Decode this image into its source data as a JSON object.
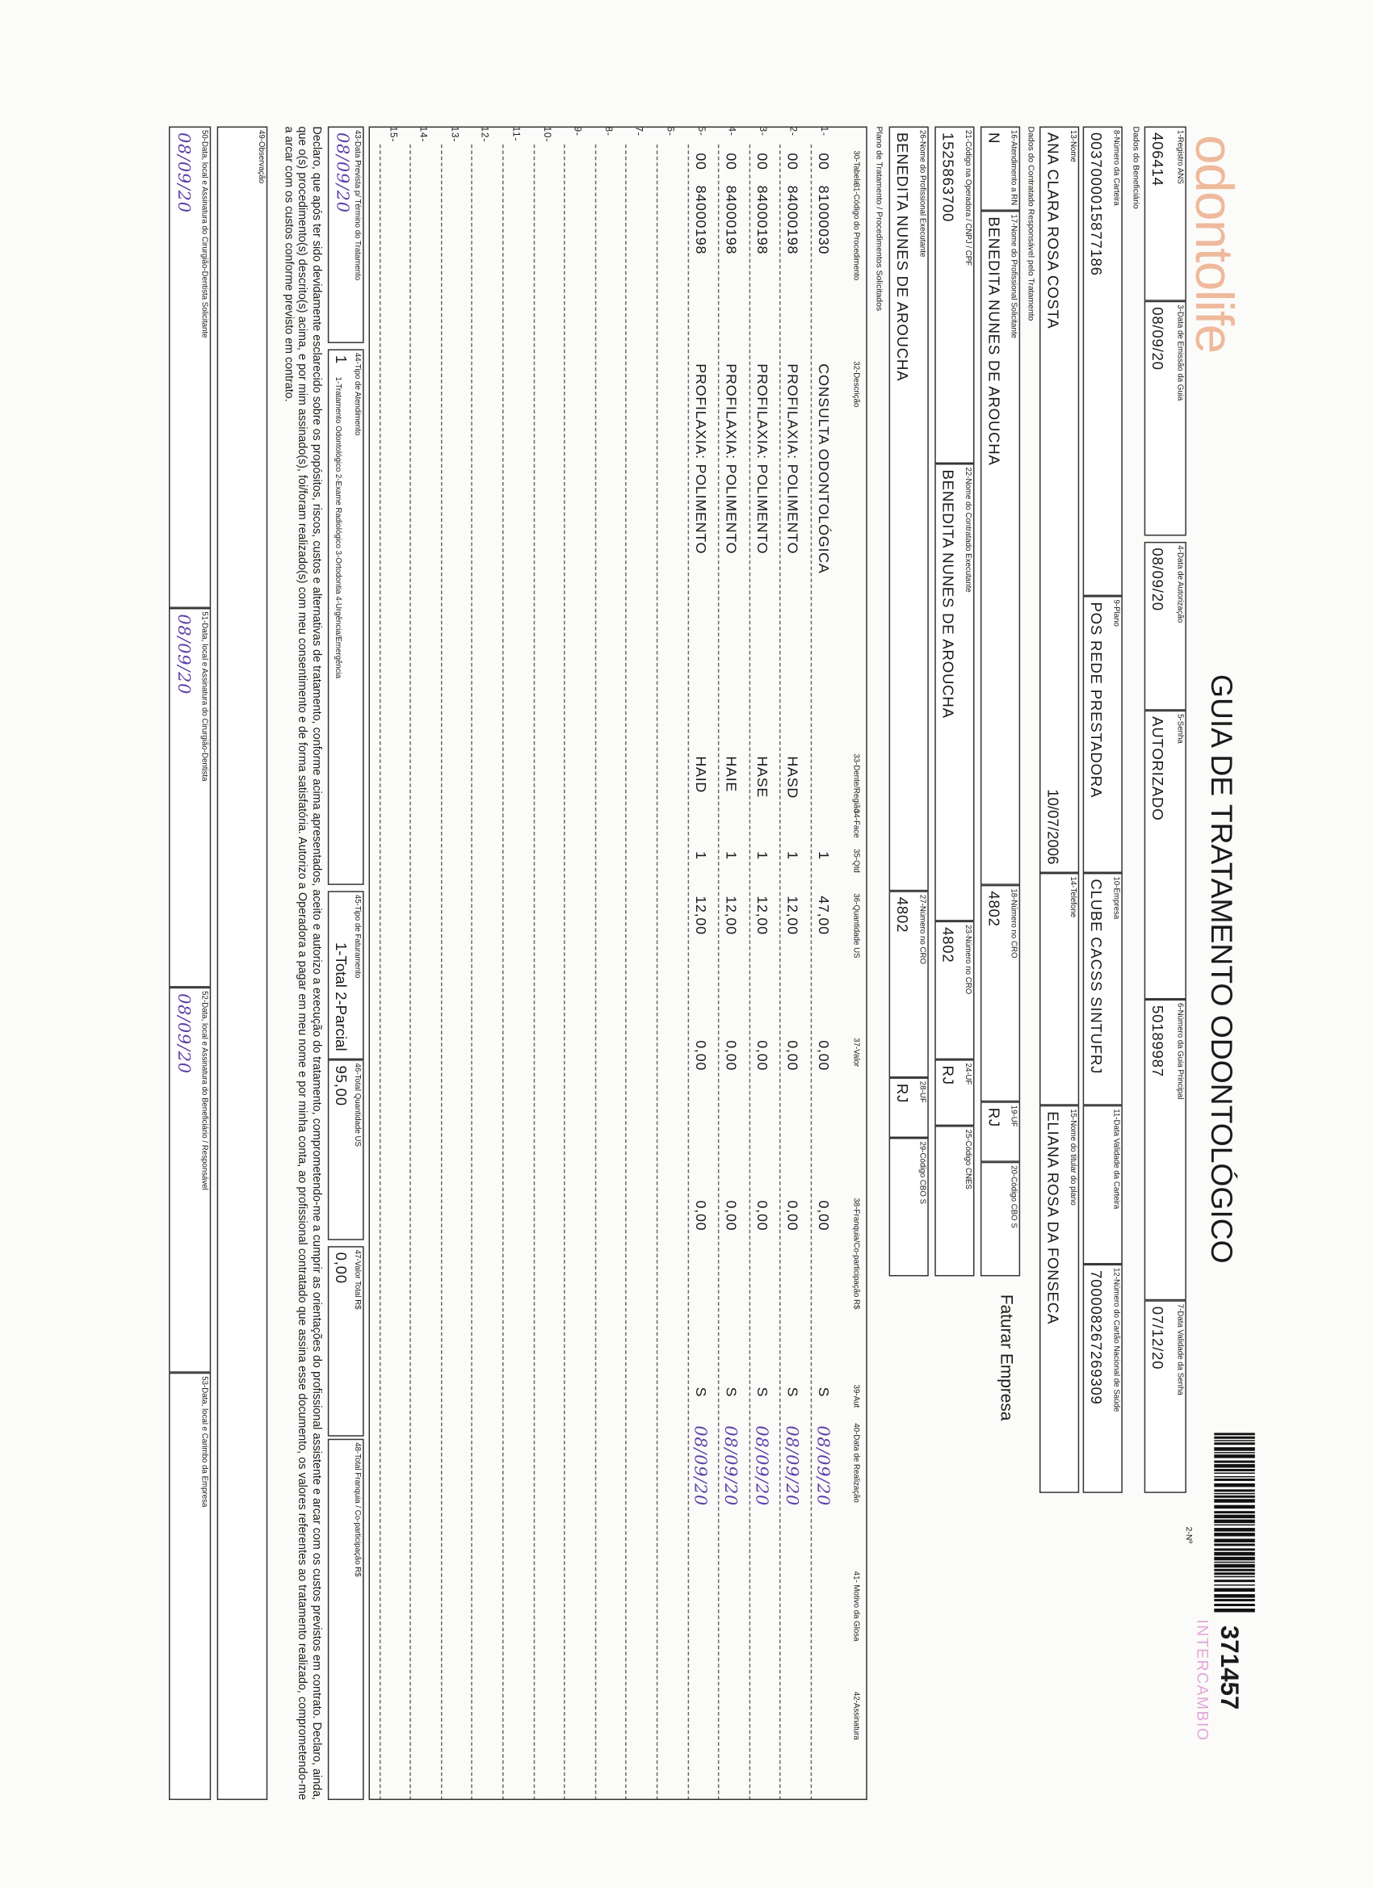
{
  "header": {
    "logo": "odontolife",
    "title": "GUIA DE TRATAMENTO ODONTOLÓGICO",
    "form_no_label": "2-Nº",
    "form_no": "371457",
    "stamp": "INTERCAMBIO"
  },
  "sections": {
    "beneficiary": "Dados do Beneficiário",
    "contractor": "Dados do Contratado Responsável pelo Tratamento",
    "plan": "Plano de Tratamento / Procedimentos Solicitados"
  },
  "fields": [
    {
      "label": "1-Registro ANS",
      "value": "406414"
    },
    {
      "label": "3-Data de Emissão da Guia",
      "value": "08/09/20"
    },
    {
      "label": "4-Data de Autorização",
      "value": "08/09/20"
    },
    {
      "label": "5-Senha",
      "value": "AUTORIZADO"
    },
    {
      "label": "6-Número da Guia Principal",
      "value": "50189987"
    },
    {
      "label": "7-Data Validade da Senha",
      "value": "07/12/20"
    },
    {
      "label": "8-Número da Carteira",
      "value": "0037000015877186"
    },
    {
      "label": "9-Plano",
      "value": "POS REDE PRESTADORA"
    },
    {
      "label": "10-Empresa",
      "value": "CLUBE CACSS SINTUFRJ"
    },
    {
      "label": "11-Data Validade da Carteira"
    },
    {
      "label": "12-Número do Cartão Nacional de Saúde",
      "value": "700008267269309"
    },
    {
      "label": "13-Nome",
      "value": "ANA CLARA ROSA COSTA",
      "extra": "10/07/2006"
    },
    {
      "label": "14-Telefone"
    },
    {
      "label": "15-Nome do titular do plano",
      "value": "ELIANA ROSA DA FONSECA"
    },
    {
      "label": "16-Atendimento a RN",
      "value": "N"
    },
    {
      "label": "17-Nome do Profissional Solicitante",
      "value": "BENEDITA NUNES DE AROUCHA"
    },
    {
      "label": "18-Número no CRO",
      "value": "4802"
    },
    {
      "label": "19-UF",
      "value": "RJ"
    },
    {
      "label": "20-Código CBO S"
    },
    {
      "label": "21-Código na Operadora / CNPJ / CPF",
      "value": "1525863700"
    },
    {
      "label": "22-Nome do Contratado Executante",
      "value": "BENEDITA NUNES DE AROUCHA"
    },
    {
      "label": "23-Número no CRO",
      "value": "4802"
    },
    {
      "label": "24-UF",
      "value": "RJ"
    },
    {
      "label": "25-Código CNES"
    },
    {
      "label": "26-Nome do Profissional Executante",
      "value": "BENEDITA NUNES DE AROUCHA"
    },
    {
      "label": "27-Número no CRO",
      "value": "4802"
    },
    {
      "label": "28-UF",
      "value": "RJ"
    },
    {
      "label": "29-Código CBO S"
    }
  ],
  "billing_note": "Faturar Empresa",
  "table": {
    "columns": {
      "tabela": "30-Tabela",
      "codigo": "31-Código do Procedimento",
      "descricao": "32-Descrição",
      "dente": "33-Dente/Região",
      "face": "34-Face",
      "qtd": "35-Qtd",
      "qtd_us": "36-Quantidade US",
      "valor": "37-Valor",
      "franquia": "38-Franquia/Co-participação R$",
      "aut": "39-Aut",
      "data": "40-Data de Realização",
      "motivo": "41- Motivo da Glosa",
      "assinatura": "42-Assinatura"
    },
    "rows": [
      {
        "n": "1-",
        "tabela": "00",
        "codigo": "81000030",
        "descricao": "CONSULTA ODONTOLÓGICA",
        "qtd": "1",
        "qtd_us": "47,00",
        "valor": "0,00",
        "franquia": "0,00",
        "aut": "S",
        "data": "08/09/20"
      },
      {
        "n": "2-",
        "tabela": "00",
        "codigo": "84000198",
        "descricao": "PROFILAXIA: POLIMENTO",
        "dente": "HASD",
        "qtd": "1",
        "qtd_us": "12,00",
        "valor": "0,00",
        "franquia": "0,00",
        "aut": "S",
        "data": "08/09/20"
      },
      {
        "n": "3-",
        "tabela": "00",
        "codigo": "84000198",
        "descricao": "PROFILAXIA: POLIMENTO",
        "dente": "HASE",
        "qtd": "1",
        "qtd_us": "12,00",
        "valor": "0,00",
        "franquia": "0,00",
        "aut": "S",
        "data": "08/09/20"
      },
      {
        "n": "4-",
        "tabela": "00",
        "codigo": "84000198",
        "descricao": "PROFILAXIA: POLIMENTO",
        "dente": "HAIE",
        "qtd": "1",
        "qtd_us": "12,00",
        "valor": "0,00",
        "franquia": "0,00",
        "aut": "S",
        "data": "08/09/20"
      },
      {
        "n": "5-",
        "tabela": "00",
        "codigo": "84000198",
        "descricao": "PROFILAXIA: POLIMENTO",
        "dente": "HAID",
        "qtd": "1",
        "qtd_us": "12,00",
        "valor": "0,00",
        "franquia": "0,00",
        "aut": "S",
        "data": "08/09/20"
      },
      {
        "n": "6-"
      },
      {
        "n": "7-"
      },
      {
        "n": "8-"
      },
      {
        "n": "9-"
      },
      {
        "n": "10-"
      },
      {
        "n": "11-"
      },
      {
        "n": "12-"
      },
      {
        "n": "13-"
      },
      {
        "n": "14-"
      },
      {
        "n": "15-"
      }
    ]
  },
  "footer": [
    {
      "label": "43-Data Prevista p/ Término do Tratamento",
      "value": "08/09/20"
    },
    {
      "label": "44-Tipo de Atendimento",
      "value": "1",
      "extra": "1-Tratamento Odontológico 2-Exame Radiológico 3-Ortodontia 4-Urgência/Emergência"
    },
    {
      "label": "45-Tipo de Faturamento",
      "extra": "1-Total 2-Parcial"
    },
    {
      "label": "46-Total Quantidade US",
      "value": "95,00"
    },
    {
      "label": "47-Valor Total R$",
      "value": "0,00"
    },
    {
      "label": "48-Total Franquia / Co-participação R$"
    }
  ],
  "declaration": "Declaro, que após ter sido devidamente esclarecido sobre os propósitos, riscos, custos e alternativas de tratamento, conforme acima apresentados, aceito e autorizo a execução do tratamento, comprometendo-me a cumprir as orientações do profissional assistente e arcar com os custos previstos em contrato. Declaro, ainda, que o(s) procedimento(s) descrito(s) acima, e por mim assinado(s), foi/foram realizado(s) com meu consentimento e de forma satisfatória. Autorizo a Operadora a pagar em meu nome e por minha conta, ao profissional contratado que assina esse documento, os valores referentes ao tratamento realizado, comprometendo-me a arcar com os custos conforme previsto em contrato.",
  "observation": {
    "label": "49-Observação"
  },
  "signatures": [
    {
      "label": "50-Data, local e Assinatura do Cirurgião-Dentista Solicitante",
      "value": "08/09/20"
    },
    {
      "label": "51-Data, local e Assinatura do Cirurgião-Dentista",
      "value": "08/09/20"
    },
    {
      "label": "52-Data, local e Assinatura do Beneficiário / Responsável",
      "value": "08/09/20"
    },
    {
      "label": "53-Data, local e Carimbo da Empresa"
    }
  ]
}
